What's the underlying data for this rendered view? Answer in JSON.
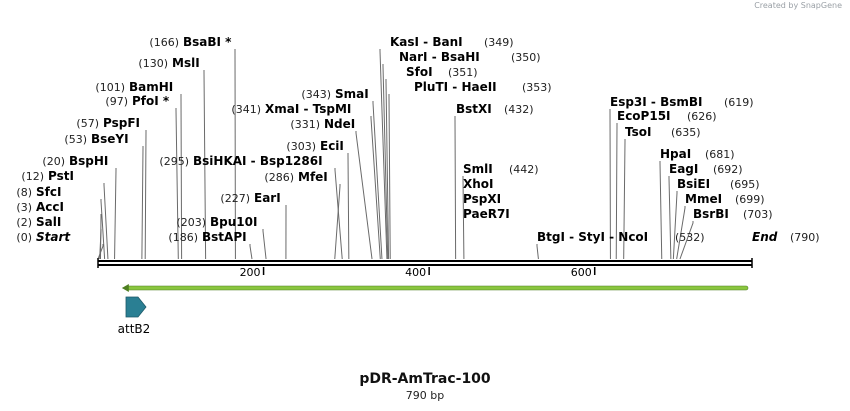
{
  "credit": "Created by SnapGene",
  "title": "pDR-AmTrac-100",
  "subtitle": "790 bp",
  "sequence": {
    "length": 790,
    "ticks": [
      200,
      400,
      600
    ]
  },
  "feature": {
    "name": "attB2",
    "color": "#2a7f93",
    "start": 1,
    "end": 24
  },
  "orf_arrow": {
    "color": "#8ac63f",
    "start": 1,
    "end": 790
  },
  "enzymes": [
    {
      "id": "start",
      "name": "Start",
      "pos": 0,
      "label": "(0)",
      "italic": true
    },
    {
      "id": "sali",
      "name": "SalI",
      "pos": 2,
      "label": "(2)"
    },
    {
      "id": "acci",
      "name": "AccI",
      "pos": 3,
      "label": "(3)"
    },
    {
      "id": "sfci",
      "name": "SfcI",
      "pos": 8,
      "label": "(8)"
    },
    {
      "id": "psti",
      "name": "PstI",
      "pos": 12,
      "label": "(12)"
    },
    {
      "id": "bsphi",
      "name": "BspHI",
      "pos": 20,
      "label": "(20)"
    },
    {
      "id": "bseyi",
      "name": "BseYI",
      "pos": 53,
      "label": "(53)"
    },
    {
      "id": "pspfi",
      "name": "PspFI",
      "pos": 57,
      "label": "(57)"
    },
    {
      "id": "pfoi",
      "name": "PfoI *",
      "pos": 97,
      "label": "(97)"
    },
    {
      "id": "bamhi",
      "name": "BamHI",
      "pos": 101,
      "label": "(101)"
    },
    {
      "id": "msli",
      "name": "MslI",
      "pos": 130,
      "label": "(130)"
    },
    {
      "id": "bsabi",
      "name": "BsaBI *",
      "pos": 166,
      "label": "(166)"
    },
    {
      "id": "bstapi",
      "name": "BstAPI",
      "pos": 186,
      "label": "(186)"
    },
    {
      "id": "bpu10i",
      "name": "Bpu10I",
      "pos": 203,
      "label": "(203)"
    },
    {
      "id": "eari",
      "name": "EarI",
      "pos": 227,
      "label": "(227)"
    },
    {
      "id": "bsihkai",
      "name": "BsiHKAI  - Bsp1286I",
      "pos": 295,
      "label": "(295)"
    },
    {
      "id": "mfei",
      "name": "MfeI",
      "pos": 286,
      "label": "(286)"
    },
    {
      "id": "ecii",
      "name": "EciI",
      "pos": 303,
      "label": "(303)"
    },
    {
      "id": "ndei",
      "name": "NdeI",
      "pos": 331,
      "label": "(331)"
    },
    {
      "id": "xmai",
      "name": "XmaI  - TspMI",
      "pos": 341,
      "label": "(341)"
    },
    {
      "id": "smai",
      "name": "SmaI",
      "pos": 343,
      "label": "(343)"
    },
    {
      "id": "kasi",
      "name": "KasI  - BanI",
      "pos": 349,
      "label": "(349)"
    },
    {
      "id": "nari",
      "name": "NarI  - BsaHI",
      "pos": 350,
      "label": "(350)"
    },
    {
      "id": "sfoi",
      "name": "SfoI",
      "pos": 351,
      "label": "(351)"
    },
    {
      "id": "plutl",
      "name": "PluTI  - HaeII",
      "pos": 353,
      "label": "(353)"
    },
    {
      "id": "bstxi",
      "name": "BstXI",
      "pos": 432,
      "label": "(432)"
    },
    {
      "id": "smli",
      "name": "SmlI",
      "pos": 442,
      "label": "(442)"
    },
    {
      "id": "xhoi",
      "name": "XhoI",
      "pos": 442,
      "label": ""
    },
    {
      "id": "pspxi",
      "name": "PspXI",
      "pos": 442,
      "label": ""
    },
    {
      "id": "paer7i",
      "name": "PaeR7I",
      "pos": 442,
      "label": ""
    },
    {
      "id": "btgi",
      "name": "BtgI  - StyI  - NcoI",
      "pos": 532,
      "label": "(532)"
    },
    {
      "id": "esp3i",
      "name": "Esp3I  - BsmBI",
      "pos": 619,
      "label": "(619)"
    },
    {
      "id": "ecop15i",
      "name": "EcoP15I",
      "pos": 626,
      "label": "(626)"
    },
    {
      "id": "tsoi",
      "name": "TsoI",
      "pos": 635,
      "label": "(635)"
    },
    {
      "id": "hpai",
      "name": "HpaI",
      "pos": 681,
      "label": "(681)"
    },
    {
      "id": "eagi",
      "name": "EagI",
      "pos": 692,
      "label": "(692)"
    },
    {
      "id": "bsiei",
      "name": "BsiEI",
      "pos": 695,
      "label": "(695)"
    },
    {
      "id": "mmei",
      "name": "MmeI",
      "pos": 699,
      "label": "(699)"
    },
    {
      "id": "bsrbi",
      "name": "BsrBI",
      "pos": 703,
      "label": "(703)"
    },
    {
      "id": "end",
      "name": "End",
      "pos": 790,
      "label": "(790)",
      "italic": true
    }
  ]
}
